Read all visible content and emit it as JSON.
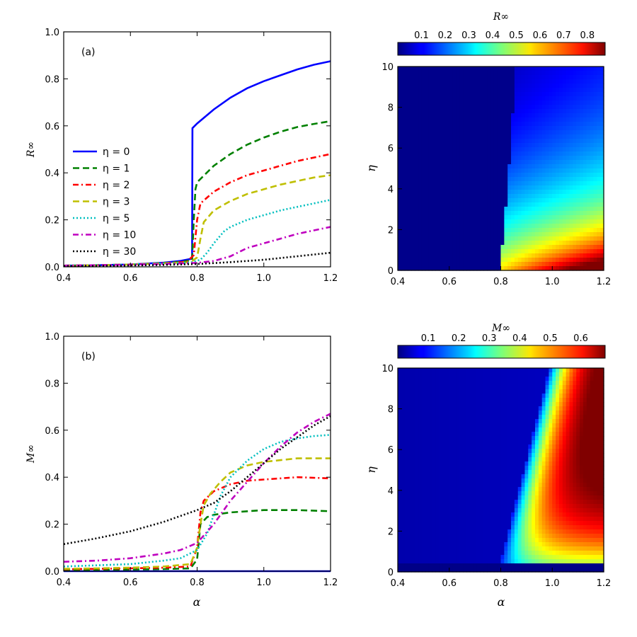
{
  "chart_data": [
    {
      "panel": "top-left",
      "type": "line",
      "annotation": "(a)",
      "xlabel": "",
      "ylabel": "R∞",
      "xlim": [
        0.4,
        1.2
      ],
      "ylim": [
        0.0,
        1.0
      ],
      "xticks": [
        "0.4",
        "0.6",
        "0.8",
        "1.0",
        "1.2"
      ],
      "yticks": [
        "0.0",
        "0.2",
        "0.4",
        "0.6",
        "0.8",
        "1.0"
      ],
      "legend_position": "center-left",
      "series": [
        {
          "name": "η = 0",
          "color": "#0000ff",
          "style": "solid",
          "x": [
            0.4,
            0.5,
            0.6,
            0.7,
            0.75,
            0.785,
            0.786,
            0.8,
            0.85,
            0.9,
            0.95,
            1.0,
            1.05,
            1.1,
            1.15,
            1.2
          ],
          "y": [
            0.005,
            0.007,
            0.01,
            0.018,
            0.025,
            0.035,
            0.59,
            0.61,
            0.67,
            0.72,
            0.76,
            0.79,
            0.815,
            0.84,
            0.86,
            0.875
          ]
        },
        {
          "name": "η = 1",
          "color": "#008000",
          "style": "dashed",
          "x": [
            0.4,
            0.5,
            0.6,
            0.7,
            0.76,
            0.785,
            0.79,
            0.795,
            0.8,
            0.85,
            0.9,
            0.95,
            1.0,
            1.05,
            1.1,
            1.15,
            1.2
          ],
          "y": [
            0.005,
            0.007,
            0.01,
            0.016,
            0.022,
            0.03,
            0.2,
            0.33,
            0.36,
            0.43,
            0.48,
            0.52,
            0.55,
            0.575,
            0.595,
            0.608,
            0.62
          ]
        },
        {
          "name": "η = 2",
          "color": "#ff0000",
          "style": "dashdot",
          "x": [
            0.4,
            0.5,
            0.6,
            0.7,
            0.77,
            0.79,
            0.8,
            0.81,
            0.85,
            0.9,
            0.95,
            1.0,
            1.05,
            1.1,
            1.15,
            1.2
          ],
          "y": [
            0.005,
            0.007,
            0.01,
            0.015,
            0.022,
            0.05,
            0.2,
            0.27,
            0.32,
            0.36,
            0.39,
            0.41,
            0.43,
            0.45,
            0.465,
            0.48
          ]
        },
        {
          "name": "η = 3",
          "color": "#bfbf00",
          "style": "dashed",
          "x": [
            0.4,
            0.5,
            0.6,
            0.7,
            0.78,
            0.8,
            0.81,
            0.82,
            0.85,
            0.9,
            0.95,
            1.0,
            1.05,
            1.1,
            1.15,
            1.2
          ],
          "y": [
            0.005,
            0.007,
            0.01,
            0.015,
            0.02,
            0.04,
            0.12,
            0.19,
            0.24,
            0.28,
            0.31,
            0.33,
            0.35,
            0.365,
            0.38,
            0.39
          ]
        },
        {
          "name": "η = 5",
          "color": "#00bfbf",
          "style": "dotted",
          "x": [
            0.4,
            0.5,
            0.6,
            0.7,
            0.78,
            0.81,
            0.83,
            0.85,
            0.88,
            0.9,
            0.95,
            1.0,
            1.05,
            1.1,
            1.15,
            1.2
          ],
          "y": [
            0.005,
            0.007,
            0.01,
            0.014,
            0.018,
            0.03,
            0.06,
            0.1,
            0.15,
            0.17,
            0.2,
            0.22,
            0.24,
            0.255,
            0.27,
            0.285
          ]
        },
        {
          "name": "η = 10",
          "color": "#bf00bf",
          "style": "dashdot",
          "x": [
            0.4,
            0.5,
            0.6,
            0.7,
            0.8,
            0.85,
            0.9,
            0.95,
            1.0,
            1.05,
            1.1,
            1.15,
            1.2
          ],
          "y": [
            0.005,
            0.007,
            0.009,
            0.012,
            0.017,
            0.025,
            0.045,
            0.08,
            0.1,
            0.12,
            0.14,
            0.155,
            0.17
          ]
        },
        {
          "name": "η = 30",
          "color": "#000000",
          "style": "dotted",
          "x": [
            0.4,
            0.5,
            0.6,
            0.7,
            0.8,
            0.9,
            1.0,
            1.1,
            1.2
          ],
          "y": [
            0.003,
            0.004,
            0.006,
            0.008,
            0.012,
            0.02,
            0.03,
            0.045,
            0.06
          ]
        }
      ]
    },
    {
      "panel": "bottom-left",
      "type": "line",
      "annotation": "(b)",
      "xlabel": "α",
      "ylabel": "M∞",
      "xlim": [
        0.4,
        1.2
      ],
      "ylim": [
        0.0,
        1.0
      ],
      "xticks": [
        "0.4",
        "0.6",
        "0.8",
        "1.0",
        "1.2"
      ],
      "yticks": [
        "0.0",
        "0.2",
        "0.4",
        "0.6",
        "0.8",
        "1.0"
      ],
      "series": [
        {
          "name": "η = 0",
          "color": "#0000ff",
          "style": "solid",
          "x": [
            0.4,
            1.2
          ],
          "y": [
            0.0,
            0.0
          ]
        },
        {
          "name": "η = 1",
          "color": "#008000",
          "style": "dashed",
          "x": [
            0.4,
            0.5,
            0.6,
            0.7,
            0.78,
            0.8,
            0.81,
            0.83,
            0.85,
            0.9,
            1.0,
            1.1,
            1.2
          ],
          "y": [
            0.005,
            0.006,
            0.007,
            0.009,
            0.012,
            0.05,
            0.2,
            0.23,
            0.24,
            0.25,
            0.26,
            0.26,
            0.255
          ]
        },
        {
          "name": "η = 2",
          "color": "#ff0000",
          "style": "dashdot",
          "x": [
            0.4,
            0.5,
            0.6,
            0.7,
            0.78,
            0.8,
            0.81,
            0.82,
            0.85,
            0.9,
            0.95,
            1.0,
            1.1,
            1.2
          ],
          "y": [
            0.008,
            0.01,
            0.012,
            0.015,
            0.02,
            0.1,
            0.25,
            0.3,
            0.34,
            0.37,
            0.385,
            0.39,
            0.4,
            0.395
          ]
        },
        {
          "name": "η = 3",
          "color": "#bfbf00",
          "style": "dashed",
          "x": [
            0.4,
            0.5,
            0.6,
            0.7,
            0.78,
            0.8,
            0.81,
            0.82,
            0.84,
            0.87,
            0.9,
            0.95,
            1.0,
            1.1,
            1.2
          ],
          "y": [
            0.01,
            0.012,
            0.015,
            0.02,
            0.03,
            0.1,
            0.2,
            0.28,
            0.33,
            0.38,
            0.42,
            0.45,
            0.465,
            0.48,
            0.48
          ]
        },
        {
          "name": "η = 5",
          "color": "#00bfbf",
          "style": "dotted",
          "x": [
            0.4,
            0.5,
            0.6,
            0.7,
            0.75,
            0.8,
            0.83,
            0.85,
            0.87,
            0.9,
            0.95,
            1.0,
            1.05,
            1.1,
            1.15,
            1.2
          ],
          "y": [
            0.02,
            0.025,
            0.03,
            0.045,
            0.055,
            0.09,
            0.16,
            0.24,
            0.32,
            0.4,
            0.47,
            0.52,
            0.55,
            0.565,
            0.575,
            0.58
          ]
        },
        {
          "name": "η = 10",
          "color": "#bf00bf",
          "style": "dashdot",
          "x": [
            0.4,
            0.5,
            0.6,
            0.7,
            0.75,
            0.8,
            0.85,
            0.9,
            0.95,
            1.0,
            1.05,
            1.1,
            1.15,
            1.2
          ],
          "y": [
            0.04,
            0.045,
            0.055,
            0.075,
            0.09,
            0.12,
            0.2,
            0.3,
            0.38,
            0.46,
            0.53,
            0.59,
            0.635,
            0.67
          ]
        },
        {
          "name": "η = 30",
          "color": "#000000",
          "style": "dotted",
          "x": [
            0.4,
            0.5,
            0.6,
            0.7,
            0.8,
            0.85,
            0.9,
            0.95,
            1.0,
            1.05,
            1.1,
            1.15,
            1.2
          ],
          "y": [
            0.115,
            0.14,
            0.17,
            0.21,
            0.26,
            0.29,
            0.34,
            0.4,
            0.46,
            0.52,
            0.57,
            0.62,
            0.66
          ]
        }
      ]
    },
    {
      "panel": "top-right",
      "type": "heatmap",
      "title": "R∞",
      "xlabel": "",
      "ylabel": "η",
      "xlim": [
        0.4,
        1.2
      ],
      "ylim": [
        0,
        10
      ],
      "xticks": [
        "0.4",
        "0.6",
        "0.8",
        "1.0",
        "1.2"
      ],
      "yticks": [
        "0",
        "2",
        "4",
        "6",
        "8",
        "10"
      ],
      "colormap": "jet",
      "colorbar_range": [
        0.0,
        0.875
      ],
      "colorbar_ticks": [
        "0.1",
        "0.2",
        "0.3",
        "0.4",
        "0.5",
        "0.6",
        "0.7",
        "0.8"
      ],
      "colorbar_position": "top"
    },
    {
      "panel": "bottom-right",
      "type": "heatmap",
      "title": "M∞",
      "xlabel": "α",
      "ylabel": "η",
      "xlim": [
        0.4,
        1.2
      ],
      "ylim": [
        0,
        10
      ],
      "xticks": [
        "0.4",
        "0.6",
        "0.8",
        "1.0",
        "1.2"
      ],
      "yticks": [
        "0",
        "2",
        "4",
        "6",
        "8",
        "10"
      ],
      "colormap": "jet",
      "colorbar_range": [
        0.0,
        0.68
      ],
      "colorbar_ticks": [
        "0.1",
        "0.2",
        "0.3",
        "0.4",
        "0.5",
        "0.6"
      ],
      "colorbar_position": "top"
    }
  ]
}
